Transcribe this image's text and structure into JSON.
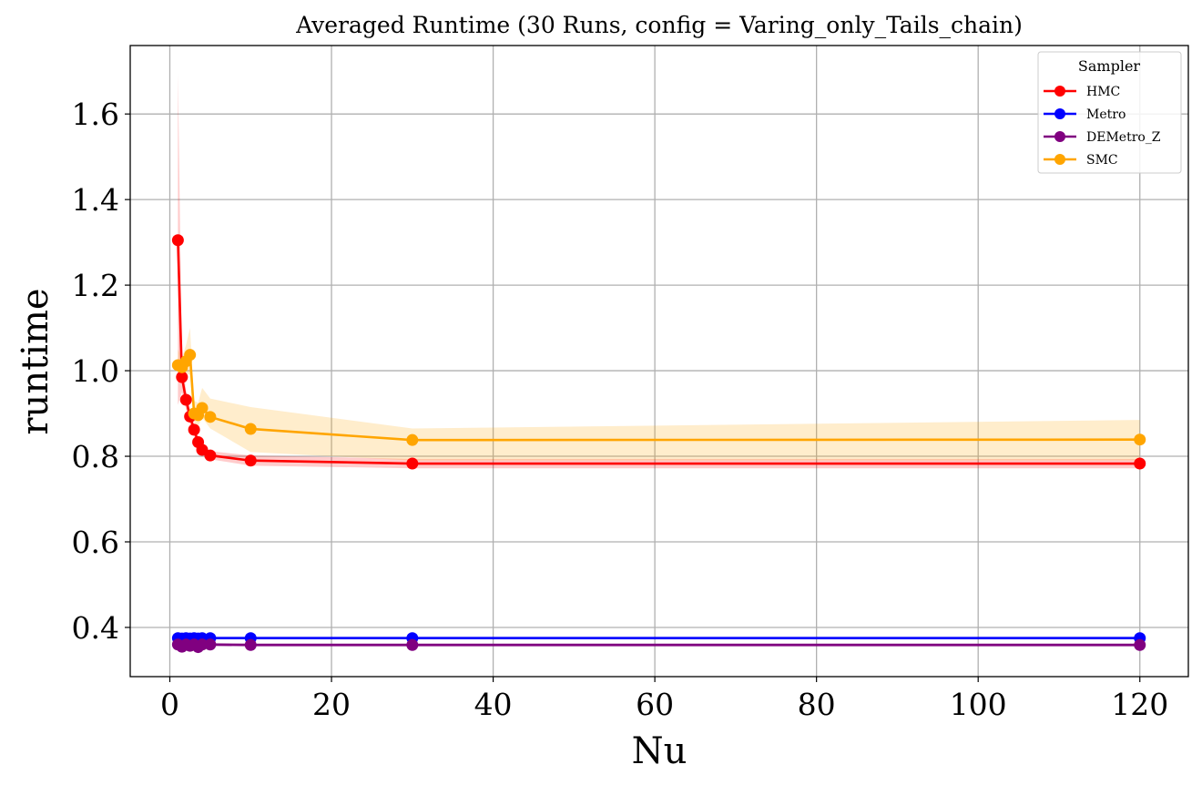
{
  "chart_data": {
    "type": "line",
    "title": "Averaged Runtime (30 Runs, config = Varing_only_Tails_chain)",
    "xlabel": "Nu",
    "ylabel": "runtime",
    "xlim": [
      -4.9,
      126
    ],
    "ylim": [
      0.285,
      1.76
    ],
    "xticks": [
      0,
      20,
      40,
      60,
      80,
      100,
      120
    ],
    "yticks": [
      0.4,
      0.6,
      0.8,
      1.0,
      1.2,
      1.4,
      1.6
    ],
    "xtick_labels": [
      "0",
      "20",
      "40",
      "60",
      "80",
      "100",
      "120"
    ],
    "ytick_labels": [
      "0.4",
      "0.6",
      "0.8",
      "1.0",
      "1.2",
      "1.4",
      "1.6"
    ],
    "grid": true,
    "legend": {
      "title": "Sampler",
      "position": "top-right"
    },
    "series": [
      {
        "name": "HMC",
        "color": "#ff0000",
        "x": [
          1,
          1.5,
          2,
          2.5,
          3,
          3.5,
          4,
          5,
          10,
          30,
          120
        ],
        "y": [
          1.305,
          0.985,
          0.932,
          0.893,
          0.862,
          0.833,
          0.815,
          0.802,
          0.79,
          0.783,
          0.783
        ],
        "lower": [
          0.92,
          0.95,
          0.91,
          0.875,
          0.848,
          0.821,
          0.805,
          0.793,
          0.778,
          0.772,
          0.772
        ],
        "upper": [
          1.695,
          1.03,
          0.955,
          0.91,
          0.877,
          0.845,
          0.826,
          0.812,
          0.802,
          0.794,
          0.794
        ]
      },
      {
        "name": "Metro",
        "color": "#0000ff",
        "x": [
          1,
          1.5,
          2,
          2.5,
          3,
          3.5,
          4,
          5,
          10,
          30,
          120
        ],
        "y": [
          0.375,
          0.374,
          0.375,
          0.374,
          0.375,
          0.374,
          0.375,
          0.375,
          0.375,
          0.375,
          0.375
        ],
        "lower": [
          0.372,
          0.371,
          0.372,
          0.371,
          0.372,
          0.371,
          0.372,
          0.372,
          0.372,
          0.372,
          0.372
        ],
        "upper": [
          0.378,
          0.377,
          0.378,
          0.377,
          0.378,
          0.377,
          0.378,
          0.378,
          0.378,
          0.378,
          0.378
        ]
      },
      {
        "name": "DEMetro_Z",
        "color": "#800080",
        "x": [
          1,
          1.5,
          2,
          2.5,
          3,
          3.5,
          4,
          5,
          10,
          30,
          120
        ],
        "y": [
          0.36,
          0.355,
          0.36,
          0.357,
          0.36,
          0.354,
          0.36,
          0.36,
          0.359,
          0.359,
          0.359
        ],
        "lower": [
          0.356,
          0.351,
          0.356,
          0.353,
          0.356,
          0.35,
          0.356,
          0.356,
          0.355,
          0.355,
          0.355
        ],
        "upper": [
          0.364,
          0.359,
          0.364,
          0.361,
          0.364,
          0.358,
          0.364,
          0.364,
          0.363,
          0.363,
          0.363
        ]
      },
      {
        "name": "SMC",
        "color": "#ffa500",
        "x": [
          1,
          1.5,
          2,
          2.5,
          3,
          3.5,
          4,
          5,
          10,
          30,
          120
        ],
        "y": [
          1.013,
          1.008,
          1.022,
          1.037,
          0.9,
          0.896,
          0.913,
          0.892,
          0.864,
          0.838,
          0.839
        ],
        "lower": [
          0.975,
          0.99,
          0.995,
          0.99,
          0.88,
          0.87,
          0.89,
          0.865,
          0.81,
          0.79,
          0.79
        ],
        "upper": [
          1.05,
          1.03,
          1.06,
          1.1,
          0.93,
          0.925,
          0.96,
          0.935,
          0.915,
          0.865,
          0.885
        ]
      }
    ]
  }
}
